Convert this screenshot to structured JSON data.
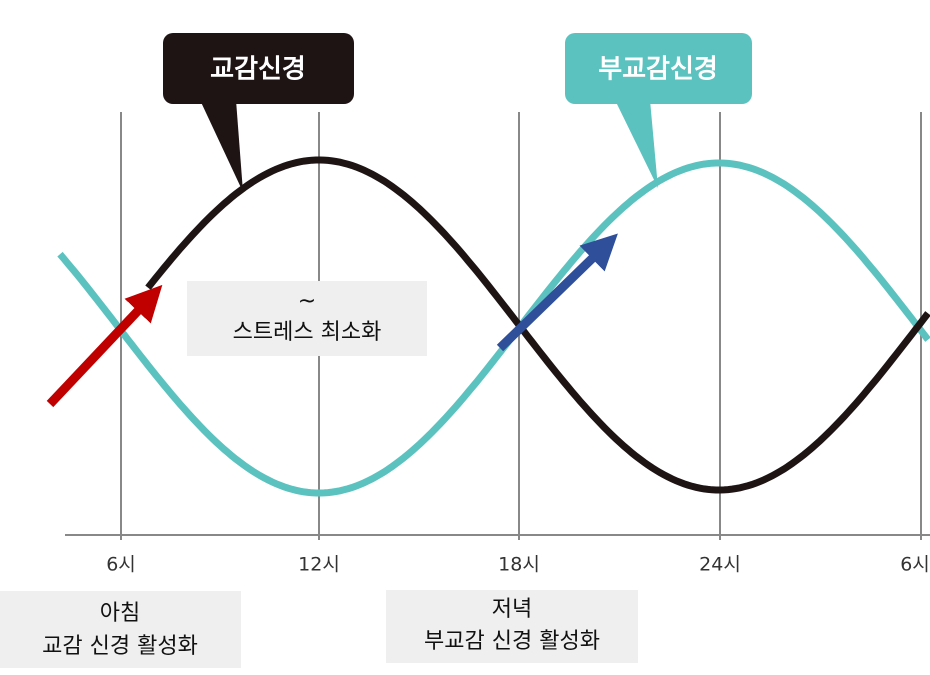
{
  "callouts": [
    {
      "label": "교감신경"
    },
    {
      "label": "부교감신경"
    }
  ],
  "axis": {
    "ticks": [
      "6시",
      "12시",
      "18시",
      "24시",
      "6시"
    ]
  },
  "annotations": [
    {
      "lines": [
        "~",
        "스트레스 최소화"
      ]
    },
    {
      "lines": [
        "아침",
        "교감 신경 활성화"
      ]
    },
    {
      "lines": [
        "저녁",
        "부교감 신경 활성화"
      ]
    }
  ]
}
